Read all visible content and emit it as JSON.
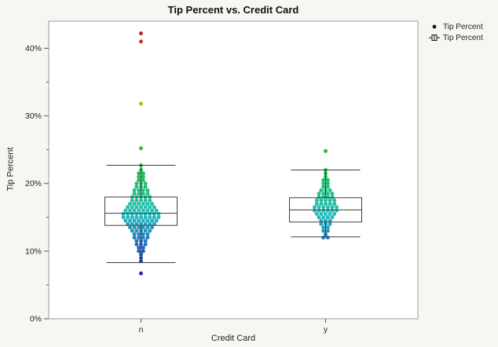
{
  "title": "Tip Percent vs. Credit Card",
  "legend": {
    "items": [
      {
        "marker": "dot",
        "label": "Tip Percent"
      },
      {
        "marker": "box",
        "label": "Tip Percent"
      }
    ]
  },
  "colors": {
    "background": "#f7f6f2",
    "panel": "#ffffff",
    "panel_border": "#9a9a9a",
    "box_stroke": "#3c3c3c",
    "tick": "#555555",
    "tick_label": "#222222"
  },
  "chart_data": {
    "type": "scatter",
    "subtype": "boxplot-with-stacked-points",
    "title": "Tip Percent vs. Credit Card",
    "xlabel": "Credit Card",
    "ylabel": "Tip Percent",
    "ylim": [
      0,
      44
    ],
    "yticks": [
      0,
      10,
      20,
      30,
      40
    ],
    "ytick_labels": [
      "0%",
      "10%",
      "20%",
      "30%",
      "40%"
    ],
    "yticks_minor": [
      5,
      15,
      25,
      35
    ],
    "grid": false,
    "legend_position": "top-right",
    "categories": [
      "n",
      "y"
    ],
    "series": [
      {
        "name": "n",
        "values": [
          6.7,
          8.5,
          9.0,
          9.5,
          10,
          10,
          10.5,
          10.5,
          11,
          11,
          11,
          11.5,
          11.5,
          11.5,
          12,
          12,
          12,
          12,
          12.5,
          12.5,
          12.5,
          12.5,
          13,
          13,
          13,
          13,
          13,
          13.5,
          13.5,
          13.5,
          13.5,
          13.5,
          13.5,
          14,
          14,
          14,
          14,
          14,
          14,
          14,
          14.5,
          14.5,
          14.5,
          14.5,
          14.5,
          14.5,
          14.5,
          14.5,
          15,
          15,
          15,
          15,
          15,
          15,
          15,
          15,
          15,
          15.5,
          15.5,
          15.5,
          15.5,
          15.5,
          15.5,
          15.5,
          15.5,
          15.5,
          16,
          16,
          16,
          16,
          16,
          16,
          16,
          16,
          16.5,
          16.5,
          16.5,
          16.5,
          16.5,
          16.5,
          16.5,
          17,
          17,
          17,
          17,
          17,
          17,
          17.5,
          17.5,
          17.5,
          17.5,
          17.5,
          18,
          18,
          18,
          18,
          18,
          18.5,
          18.5,
          18.5,
          18.5,
          19,
          19,
          19,
          19,
          19.5,
          19.5,
          19.5,
          20,
          20,
          20,
          20.5,
          20.5,
          21,
          21,
          21.5,
          21.5,
          22,
          22.7,
          25.2,
          31.8,
          41.0,
          42.2
        ]
      },
      {
        "name": "y",
        "values": [
          12,
          12,
          12.5,
          13,
          13,
          13.5,
          13.5,
          14,
          14,
          14,
          14.5,
          14.5,
          14.5,
          15,
          15,
          15,
          15,
          15.5,
          15.5,
          15.5,
          15.5,
          15.5,
          16,
          16,
          16,
          16,
          16,
          16,
          16.5,
          16.5,
          16.5,
          16.5,
          16.5,
          16.5,
          17,
          17,
          17,
          17,
          17,
          17.5,
          17.5,
          17.5,
          17.5,
          17.5,
          18,
          18,
          18,
          18,
          18.5,
          18.5,
          18.5,
          18.5,
          19,
          19,
          19,
          19.5,
          19.5,
          20,
          20,
          20.5,
          20.5,
          21,
          21.5,
          22,
          24.8
        ]
      }
    ],
    "box_stats": [
      {
        "category": "n",
        "low": 8.3,
        "q1": 13.8,
        "median": 15.6,
        "q3": 18.0,
        "high": 22.7
      },
      {
        "category": "y",
        "low": 12.1,
        "q1": 14.3,
        "median": 16.1,
        "q3": 17.9,
        "high": 22.0
      }
    ],
    "color_scale": {
      "min": 6.6,
      "max": 42.2,
      "hue_start": 240,
      "hue_end": 0
    }
  }
}
